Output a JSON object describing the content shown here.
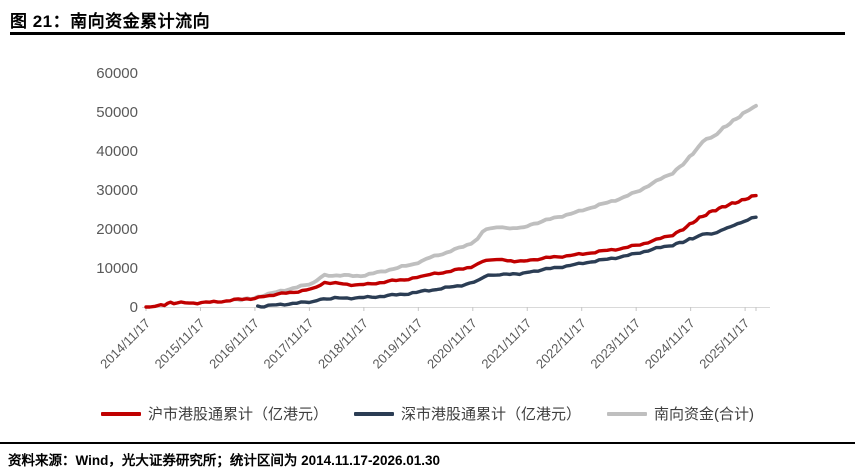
{
  "header": {
    "title": "图 21：南向资金累计流向"
  },
  "footer": {
    "source_text": "资料来源：Wind，光大证券研究所；统计区间为 2014.11.17-2026.01.30"
  },
  "chart_data": {
    "type": "line",
    "title": "南向资金累计流向",
    "x_range": [
      2014.88,
      2026.08
    ],
    "ylim": [
      0,
      60000
    ],
    "grid": false,
    "legend_position": "bottom",
    "axis_color": "#D9D9D9",
    "tick_mark_color": "#C6C6C6",
    "tick_text_color": "#595959",
    "y_ticks": [
      0,
      10000,
      20000,
      30000,
      40000,
      50000,
      60000
    ],
    "x_tick_positions": [
      2014.88,
      2015.88,
      2016.88,
      2017.88,
      2018.88,
      2019.88,
      2020.88,
      2021.88,
      2022.88,
      2023.88,
      2024.88,
      2025.88,
      2026.08
    ],
    "x_tick_labels": [
      "2014/11/17",
      "2015/11/17",
      "2016/11/17",
      "2017/11/17",
      "2018/11/17",
      "2019/11/17",
      "2020/11/17",
      "2021/11/17",
      "2022/11/17",
      "2023/11/17",
      "2024/11/17",
      "2025/11/17",
      ""
    ],
    "series": [
      {
        "name": "沪市港股通累计（亿港元）",
        "color": "#C00000",
        "width": 3.4,
        "points": [
          [
            2014.88,
            0
          ],
          [
            2014.95,
            80
          ],
          [
            2015.05,
            350
          ],
          [
            2015.15,
            520
          ],
          [
            2015.22,
            640
          ],
          [
            2015.28,
            920
          ],
          [
            2015.33,
            1080
          ],
          [
            2015.45,
            1020
          ],
          [
            2015.6,
            1050
          ],
          [
            2015.75,
            1030
          ],
          [
            2015.9,
            1100
          ],
          [
            2016.05,
            1200
          ],
          [
            2016.2,
            1380
          ],
          [
            2016.35,
            1550
          ],
          [
            2016.5,
            1800
          ],
          [
            2016.65,
            2000
          ],
          [
            2016.8,
            2150
          ],
          [
            2016.95,
            2420
          ],
          [
            2017.05,
            2870
          ],
          [
            2017.15,
            2980
          ],
          [
            2017.3,
            3260
          ],
          [
            2017.45,
            3560
          ],
          [
            2017.6,
            3860
          ],
          [
            2017.75,
            4160
          ],
          [
            2017.9,
            4510
          ],
          [
            2018.0,
            4920
          ],
          [
            2018.08,
            5520
          ],
          [
            2018.16,
            6060
          ],
          [
            2018.26,
            6010
          ],
          [
            2018.36,
            6110
          ],
          [
            2018.5,
            5910
          ],
          [
            2018.65,
            5760
          ],
          [
            2018.8,
            5660
          ],
          [
            2018.95,
            5810
          ],
          [
            2019.1,
            6110
          ],
          [
            2019.25,
            6410
          ],
          [
            2019.4,
            6710
          ],
          [
            2019.55,
            6910
          ],
          [
            2019.7,
            7210
          ],
          [
            2019.85,
            7510
          ],
          [
            2020.0,
            7910
          ],
          [
            2020.1,
            8310
          ],
          [
            2020.25,
            8710
          ],
          [
            2020.4,
            9010
          ],
          [
            2020.55,
            9410
          ],
          [
            2020.7,
            9810
          ],
          [
            2020.85,
            10310
          ],
          [
            2020.97,
            10910
          ],
          [
            2021.06,
            11650
          ],
          [
            2021.13,
            12100
          ],
          [
            2021.22,
            12060
          ],
          [
            2021.32,
            12160
          ],
          [
            2021.42,
            11960
          ],
          [
            2021.52,
            11810
          ],
          [
            2021.64,
            11710
          ],
          [
            2021.76,
            11760
          ],
          [
            2021.88,
            11910
          ],
          [
            2022.0,
            12160
          ],
          [
            2022.15,
            12410
          ],
          [
            2022.3,
            12710
          ],
          [
            2022.45,
            12910
          ],
          [
            2022.6,
            13110
          ],
          [
            2022.75,
            13310
          ],
          [
            2022.9,
            13610
          ],
          [
            2023.05,
            13910
          ],
          [
            2023.2,
            14210
          ],
          [
            2023.35,
            14510
          ],
          [
            2023.5,
            14810
          ],
          [
            2023.65,
            15110
          ],
          [
            2023.8,
            15560
          ],
          [
            2023.95,
            16010
          ],
          [
            2024.1,
            16610
          ],
          [
            2024.25,
            17210
          ],
          [
            2024.4,
            17910
          ],
          [
            2024.55,
            18510
          ],
          [
            2024.68,
            19410
          ],
          [
            2024.8,
            20510
          ],
          [
            2024.92,
            21710
          ],
          [
            2025.04,
            22810
          ],
          [
            2025.16,
            23710
          ],
          [
            2025.28,
            24610
          ],
          [
            2025.4,
            25210
          ],
          [
            2025.52,
            25910
          ],
          [
            2025.64,
            26510
          ],
          [
            2025.76,
            27010
          ],
          [
            2025.88,
            27610
          ],
          [
            2026.0,
            28310
          ],
          [
            2026.08,
            28560
          ]
        ]
      },
      {
        "name": "深市港股通累计（亿港元）",
        "color": "#2B3D54",
        "width": 3.4,
        "points": [
          [
            2016.93,
            0
          ],
          [
            2017.05,
            200
          ],
          [
            2017.2,
            420
          ],
          [
            2017.35,
            620
          ],
          [
            2017.5,
            820
          ],
          [
            2017.65,
            980
          ],
          [
            2017.8,
            1160
          ],
          [
            2017.95,
            1420
          ],
          [
            2018.08,
            1930
          ],
          [
            2018.2,
            2120
          ],
          [
            2018.35,
            2220
          ],
          [
            2018.5,
            2270
          ],
          [
            2018.65,
            2320
          ],
          [
            2018.8,
            2370
          ],
          [
            2018.95,
            2470
          ],
          [
            2019.1,
            2620
          ],
          [
            2019.25,
            2820
          ],
          [
            2019.4,
            3020
          ],
          [
            2019.55,
            3220
          ],
          [
            2019.7,
            3470
          ],
          [
            2019.85,
            3720
          ],
          [
            2020.0,
            4120
          ],
          [
            2020.15,
            4420
          ],
          [
            2020.3,
            4720
          ],
          [
            2020.45,
            5020
          ],
          [
            2020.6,
            5420
          ],
          [
            2020.75,
            5820
          ],
          [
            2020.9,
            6320
          ],
          [
            2021.0,
            6870
          ],
          [
            2021.08,
            7620
          ],
          [
            2021.16,
            7970
          ],
          [
            2021.26,
            8120
          ],
          [
            2021.38,
            8270
          ],
          [
            2021.5,
            8470
          ],
          [
            2021.62,
            8420
          ],
          [
            2021.74,
            8520
          ],
          [
            2021.87,
            8820
          ],
          [
            2022.0,
            9220
          ],
          [
            2022.15,
            9520
          ],
          [
            2022.3,
            9820
          ],
          [
            2022.45,
            10220
          ],
          [
            2022.6,
            10520
          ],
          [
            2022.75,
            10820
          ],
          [
            2022.9,
            11220
          ],
          [
            2023.05,
            11620
          ],
          [
            2023.2,
            11920
          ],
          [
            2023.35,
            12220
          ],
          [
            2023.5,
            12620
          ],
          [
            2023.65,
            13020
          ],
          [
            2023.8,
            13420
          ],
          [
            2023.95,
            13920
          ],
          [
            2024.1,
            14520
          ],
          [
            2024.25,
            15020
          ],
          [
            2024.4,
            15420
          ],
          [
            2024.55,
            15920
          ],
          [
            2024.68,
            16420
          ],
          [
            2024.8,
            17020
          ],
          [
            2024.92,
            17620
          ],
          [
            2025.02,
            18020
          ],
          [
            2025.1,
            18720
          ],
          [
            2025.18,
            18920
          ],
          [
            2025.26,
            18720
          ],
          [
            2025.36,
            19220
          ],
          [
            2025.5,
            20020
          ],
          [
            2025.62,
            20620
          ],
          [
            2025.74,
            21320
          ],
          [
            2025.86,
            21920
          ],
          [
            2026.0,
            22720
          ],
          [
            2026.08,
            23020
          ]
        ]
      },
      {
        "name": "南向资金(合计)",
        "color": "#BFBFBF",
        "width": 3.8,
        "points": [
          [
            2016.5,
            1800
          ],
          [
            2016.8,
            2150
          ],
          [
            2016.93,
            2420
          ],
          [
            2017.05,
            3070
          ],
          [
            2017.2,
            3500
          ],
          [
            2017.35,
            4080
          ],
          [
            2017.5,
            4580
          ],
          [
            2017.65,
            5040
          ],
          [
            2017.8,
            5520
          ],
          [
            2017.95,
            6230
          ],
          [
            2018.08,
            7450
          ],
          [
            2018.16,
            8050
          ],
          [
            2018.3,
            8130
          ],
          [
            2018.45,
            8080
          ],
          [
            2018.6,
            8030
          ],
          [
            2018.75,
            7980
          ],
          [
            2018.9,
            8130
          ],
          [
            2019.05,
            8580
          ],
          [
            2019.2,
            9080
          ],
          [
            2019.35,
            9580
          ],
          [
            2019.5,
            10030
          ],
          [
            2019.65,
            10530
          ],
          [
            2019.8,
            11080
          ],
          [
            2019.95,
            11780
          ],
          [
            2020.1,
            12680
          ],
          [
            2020.25,
            13380
          ],
          [
            2020.4,
            13980
          ],
          [
            2020.55,
            14730
          ],
          [
            2020.7,
            15480
          ],
          [
            2020.85,
            16380
          ],
          [
            2020.97,
            17330
          ],
          [
            2021.06,
            19270
          ],
          [
            2021.13,
            20070
          ],
          [
            2021.22,
            20180
          ],
          [
            2021.32,
            20430
          ],
          [
            2021.42,
            20230
          ],
          [
            2021.5,
            20280
          ],
          [
            2021.62,
            20130
          ],
          [
            2021.76,
            20280
          ],
          [
            2021.88,
            20730
          ],
          [
            2022.0,
            21380
          ],
          [
            2022.15,
            21930
          ],
          [
            2022.3,
            22530
          ],
          [
            2022.45,
            23130
          ],
          [
            2022.6,
            23630
          ],
          [
            2022.75,
            24130
          ],
          [
            2022.9,
            24830
          ],
          [
            2023.05,
            25530
          ],
          [
            2023.2,
            26130
          ],
          [
            2023.35,
            26730
          ],
          [
            2023.5,
            27430
          ],
          [
            2023.65,
            28130
          ],
          [
            2023.8,
            28980
          ],
          [
            2023.95,
            29930
          ],
          [
            2024.1,
            31130
          ],
          [
            2024.25,
            32230
          ],
          [
            2024.4,
            33330
          ],
          [
            2024.55,
            34430
          ],
          [
            2024.68,
            35830
          ],
          [
            2024.8,
            37530
          ],
          [
            2024.92,
            39330
          ],
          [
            2025.02,
            40850
          ],
          [
            2025.1,
            42400
          ],
          [
            2025.17,
            43300
          ],
          [
            2025.25,
            43400
          ],
          [
            2025.36,
            44400
          ],
          [
            2025.48,
            45900
          ],
          [
            2025.6,
            47100
          ],
          [
            2025.72,
            48300
          ],
          [
            2025.84,
            49500
          ],
          [
            2025.95,
            50700
          ],
          [
            2026.04,
            51300
          ],
          [
            2026.08,
            51580
          ]
        ]
      }
    ]
  }
}
